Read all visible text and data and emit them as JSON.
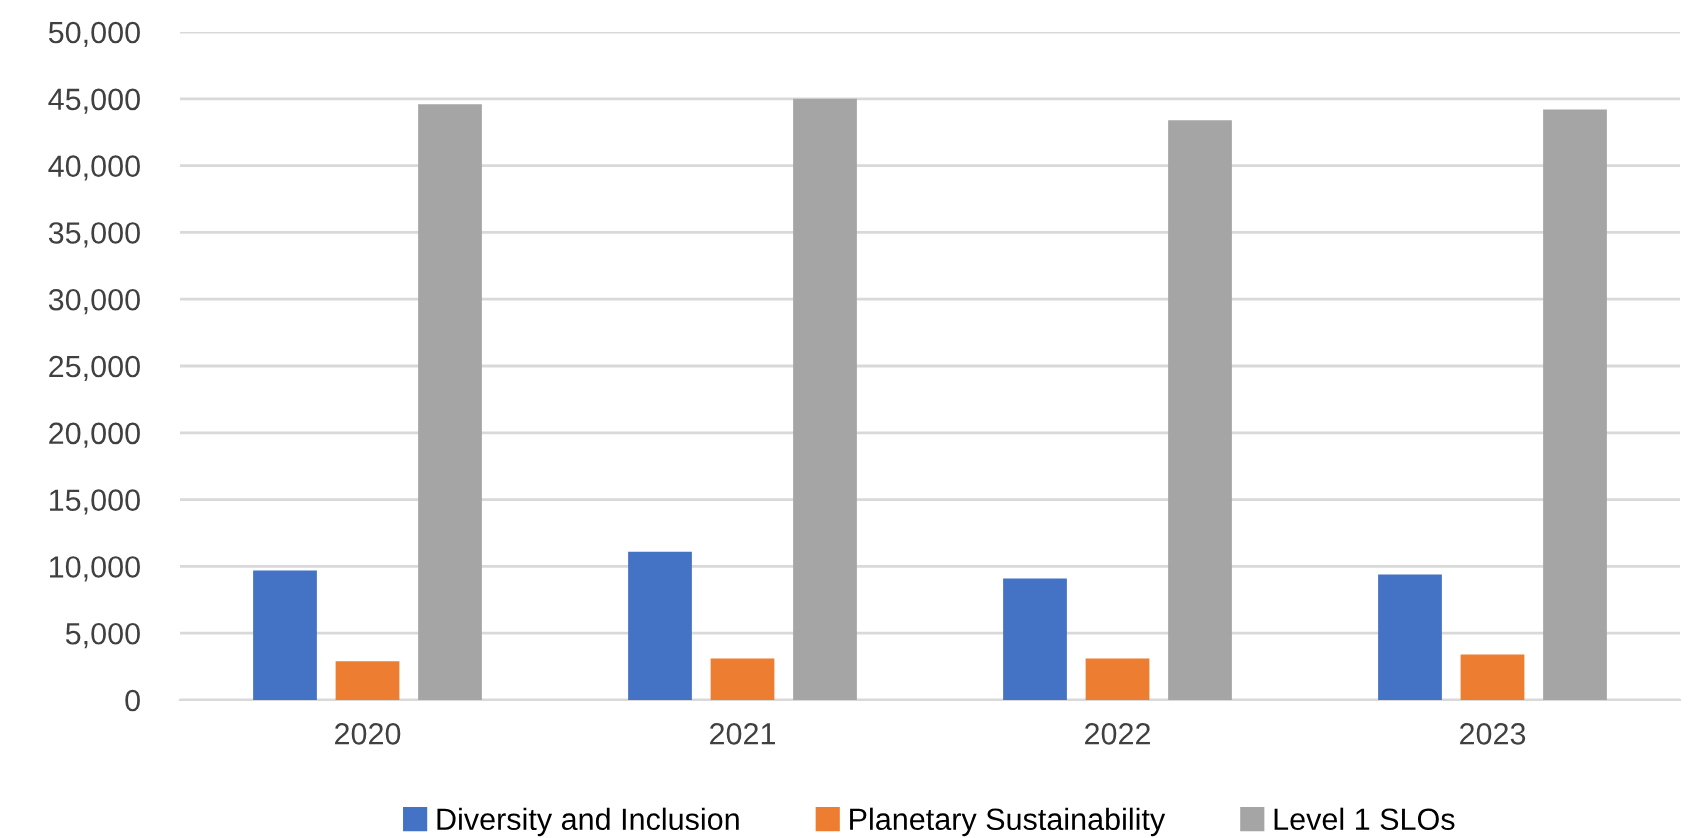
{
  "chart_data": {
    "type": "bar",
    "categories": [
      "2020",
      "2021",
      "2022",
      "2023"
    ],
    "series": [
      {
        "name": "Diversity and Inclusion",
        "color": "#4472c4",
        "values": [
          9700,
          11100,
          9100,
          9400
        ]
      },
      {
        "name": "Planetary Sustainability",
        "color": "#ed7d31",
        "values": [
          2900,
          3100,
          3100,
          3400
        ]
      },
      {
        "name": "Level 1 SLOs",
        "color": "#a5a5a5",
        "values": [
          44600,
          45000,
          43400,
          44200
        ]
      }
    ],
    "ylim": [
      0,
      50000
    ],
    "yticks": [
      {
        "value": 0,
        "label": "0"
      },
      {
        "value": 5000,
        "label": "5,000"
      },
      {
        "value": 10000,
        "label": "10,000"
      },
      {
        "value": 15000,
        "label": "15,000"
      },
      {
        "value": 20000,
        "label": "20,000"
      },
      {
        "value": 25000,
        "label": "25,000"
      },
      {
        "value": 30000,
        "label": "30,000"
      },
      {
        "value": 35000,
        "label": "35,000"
      },
      {
        "value": 40000,
        "label": "40,000"
      },
      {
        "value": 45000,
        "label": "45,000"
      },
      {
        "value": 50000,
        "label": "50,000"
      }
    ],
    "grid": "y",
    "legend": "bottom"
  }
}
